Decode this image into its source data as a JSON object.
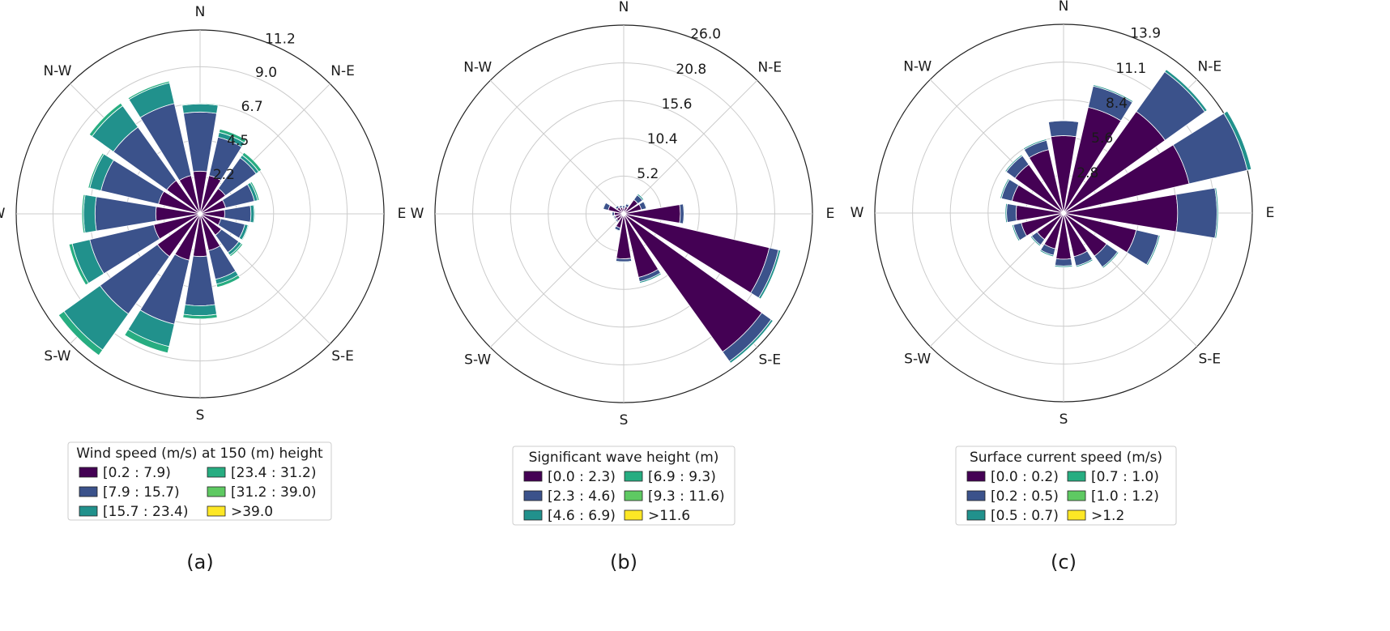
{
  "chart_data": [
    {
      "type": "windrose",
      "panel_label": "(a)",
      "directions": [
        "N",
        "N-E",
        "E",
        "S-E",
        "S",
        "S-W",
        "W",
        "N-W"
      ],
      "radial_ticks": [
        "2.2",
        "4.5",
        "6.7",
        "9.0",
        "11.2"
      ],
      "rmax": 11.2,
      "legend_title": "Wind speed (m/s) at 150 (m) height",
      "bins": [
        "[0.2 : 7.9)",
        "[7.9 : 15.7)",
        "[15.7 : 23.4)",
        "[23.4 : 31.2)",
        "[31.2 : 39.0)",
        ">39.0"
      ],
      "sectors": [
        {
          "dir": 0.0,
          "cum": [
            2.6,
            6.2,
            6.7,
            6.75
          ]
        },
        {
          "dir": 22.5,
          "cum": [
            2.4,
            4.8,
            5.1,
            5.3
          ]
        },
        {
          "dir": 45.0,
          "cum": [
            1.9,
            4.2,
            4.4,
            4.6
          ]
        },
        {
          "dir": 67.5,
          "cum": [
            1.6,
            3.4,
            3.6,
            3.7
          ]
        },
        {
          "dir": 90.0,
          "cum": [
            1.5,
            3.1,
            3.3,
            3.35
          ]
        },
        {
          "dir": 112.5,
          "cum": [
            1.3,
            2.8,
            3.0,
            3.05
          ]
        },
        {
          "dir": 135.0,
          "cum": [
            1.6,
            2.9,
            3.1,
            3.2
          ]
        },
        {
          "dir": 157.5,
          "cum": [
            2.3,
            4.1,
            4.4,
            4.6
          ]
        },
        {
          "dir": 180.0,
          "cum": [
            2.6,
            5.6,
            6.2,
            6.4
          ]
        },
        {
          "dir": 202.5,
          "cum": [
            2.9,
            6.9,
            8.3,
            8.7
          ]
        },
        {
          "dir": 225.0,
          "cum": [
            3.2,
            7.5,
            10.2,
            10.6
          ]
        },
        {
          "dir": 247.5,
          "cum": [
            2.9,
            6.9,
            8.0,
            8.2
          ]
        },
        {
          "dir": 270.0,
          "cum": [
            2.7,
            6.4,
            7.1,
            7.2
          ]
        },
        {
          "dir": 292.5,
          "cum": [
            2.6,
            6.2,
            6.9,
            7.0
          ]
        },
        {
          "dir": 315.0,
          "cum": [
            2.5,
            6.5,
            8.1,
            8.3
          ]
        },
        {
          "dir": 337.5,
          "cum": [
            2.4,
            6.9,
            8.2,
            8.3
          ]
        }
      ]
    },
    {
      "type": "windrose",
      "panel_label": "(b)",
      "directions": [
        "N",
        "N-E",
        "E",
        "S-E",
        "S",
        "S-W",
        "W",
        "N-W"
      ],
      "radial_ticks": [
        "5.2",
        "10.4",
        "15.6",
        "20.8",
        "26.0"
      ],
      "rmax": 26.0,
      "legend_title": "Significant wave height (m)",
      "bins": [
        "[0.0 : 2.3)",
        "[2.3 : 4.6)",
        "[4.6 : 6.9)",
        "[6.9 : 9.3)",
        "[9.3 : 11.6)",
        ">11.6"
      ],
      "sectors": [
        {
          "dir": 0.0,
          "cum": [
            0.8,
            1.1,
            1.2
          ]
        },
        {
          "dir": 22.5,
          "cum": [
            1.0,
            1.4,
            1.5
          ]
        },
        {
          "dir": 45.0,
          "cum": [
            2.4,
            3.2,
            3.4
          ]
        },
        {
          "dir": 67.5,
          "cum": [
            2.5,
            3.2,
            3.3
          ]
        },
        {
          "dir": 90.0,
          "cum": [
            7.8,
            8.3,
            8.4
          ]
        },
        {
          "dir": 112.5,
          "cum": [
            20.6,
            21.9,
            22.2
          ]
        },
        {
          "dir": 135.0,
          "cum": [
            23.4,
            25.0,
            25.3
          ]
        },
        {
          "dir": 157.5,
          "cum": [
            9.0,
            9.6,
            9.8
          ]
        },
        {
          "dir": 180.0,
          "cum": [
            6.2,
            6.6,
            6.7
          ]
        },
        {
          "dir": 202.5,
          "cum": [
            2.0,
            2.4,
            2.5
          ]
        },
        {
          "dir": 225.0,
          "cum": [
            1.2,
            1.4,
            1.5
          ]
        },
        {
          "dir": 247.5,
          "cum": [
            1.2,
            1.4,
            1.5
          ]
        },
        {
          "dir": 270.0,
          "cum": [
            1.3,
            1.6,
            1.7
          ]
        },
        {
          "dir": 292.5,
          "cum": [
            2.2,
            2.9,
            3.0
          ]
        },
        {
          "dir": 315.0,
          "cum": [
            1.1,
            1.4,
            1.5
          ]
        },
        {
          "dir": 337.5,
          "cum": [
            0.9,
            1.2,
            1.3
          ]
        }
      ]
    },
    {
      "type": "windrose",
      "panel_label": "(c)",
      "directions": [
        "N",
        "N-E",
        "E",
        "S-E",
        "S",
        "S-W",
        "W",
        "N-W"
      ],
      "radial_ticks": [
        "2.8",
        "5.6",
        "8.4",
        "11.1",
        "13.9"
      ],
      "rmax": 13.9,
      "legend_title": "Surface current speed (m/s)",
      "bins": [
        "[0.0 : 0.2)",
        "[0.2 : 0.5)",
        "[0.5 : 0.7)",
        "[0.7 : 1.0)",
        "[1.0 : 1.2)",
        ">1.2"
      ],
      "sectors": [
        {
          "dir": 0.0,
          "cum": [
            5.7,
            6.8,
            6.85
          ]
        },
        {
          "dir": 22.5,
          "cum": [
            8.0,
            9.6,
            9.7
          ]
        },
        {
          "dir": 45.0,
          "cum": [
            9.2,
            12.8,
            13.0
          ]
        },
        {
          "dir": 67.5,
          "cum": [
            9.5,
            13.9,
            14.2
          ]
        },
        {
          "dir": 90.0,
          "cum": [
            8.4,
            11.3,
            11.4
          ]
        },
        {
          "dir": 112.5,
          "cum": [
            5.5,
            7.2,
            7.3
          ]
        },
        {
          "dir": 135.0,
          "cum": [
            3.9,
            4.9,
            5.0
          ]
        },
        {
          "dir": 157.5,
          "cum": [
            3.3,
            4.0,
            4.1
          ]
        },
        {
          "dir": 180.0,
          "cum": [
            3.4,
            3.9,
            4.0
          ]
        },
        {
          "dir": 202.5,
          "cum": [
            2.7,
            3.2,
            3.3
          ]
        },
        {
          "dir": 225.0,
          "cum": [
            2.4,
            2.9,
            3.0
          ]
        },
        {
          "dir": 247.5,
          "cum": [
            3.2,
            3.8,
            3.9
          ]
        },
        {
          "dir": 270.0,
          "cum": [
            3.5,
            4.2,
            4.3
          ]
        },
        {
          "dir": 292.5,
          "cum": [
            3.9,
            4.7,
            4.8
          ]
        },
        {
          "dir": 315.0,
          "cum": [
            4.4,
            5.2,
            5.3
          ]
        },
        {
          "dir": 337.5,
          "cum": [
            4.8,
            5.5,
            5.6
          ]
        }
      ]
    }
  ],
  "colors": {
    "bins": [
      "#440154",
      "#3b528b",
      "#21918c",
      "#27ad81",
      "#5ec962",
      "#fde725"
    ],
    "grid": "#cccccc",
    "frame": "#222222",
    "legend_border": "#cccccc"
  }
}
